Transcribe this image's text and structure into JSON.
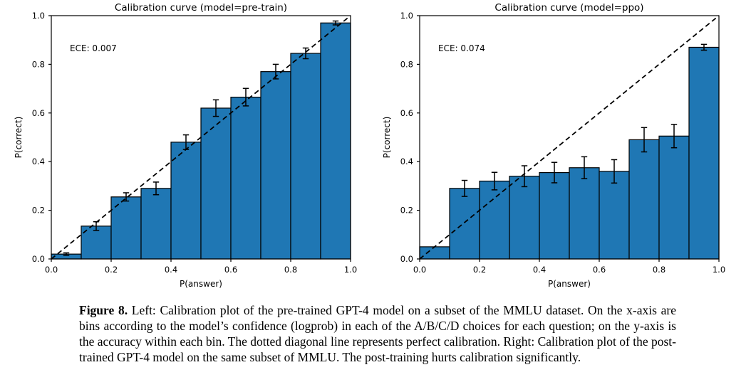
{
  "chart_data": [
    {
      "type": "bar",
      "title": "Calibration curve (model=pre-train)",
      "xlabel": "P(answer)",
      "ylabel": "P(correct)",
      "annotation": "ECE: 0.007",
      "xlim": [
        0.0,
        1.0
      ],
      "ylim": [
        0.0,
        1.0
      ],
      "xticks": [
        0.0,
        0.2,
        0.4,
        0.6,
        0.8,
        1.0
      ],
      "yticks": [
        0.0,
        0.2,
        0.4,
        0.6,
        0.8,
        1.0
      ],
      "bin_start": [
        0.0,
        0.1,
        0.2,
        0.3,
        0.4,
        0.5,
        0.6,
        0.7,
        0.8,
        0.9
      ],
      "bin_width": 0.1,
      "values": [
        0.02,
        0.135,
        0.255,
        0.29,
        0.48,
        0.62,
        0.665,
        0.77,
        0.845,
        0.97
      ],
      "errors": [
        0.005,
        0.018,
        0.017,
        0.026,
        0.03,
        0.034,
        0.036,
        0.03,
        0.022,
        0.008
      ],
      "diagonal": true,
      "grid": false,
      "legend": null,
      "colors": {
        "bar": "#1f77b4",
        "bar_edge": "#000000",
        "error": "#000000",
        "diagonal": "#000000",
        "axis": "#000000",
        "text": "#000000"
      }
    },
    {
      "type": "bar",
      "title": "Calibration curve (model=ppo)",
      "xlabel": "P(answer)",
      "ylabel": "P(correct)",
      "annotation": "ECE: 0.074",
      "xlim": [
        0.0,
        1.0
      ],
      "ylim": [
        0.0,
        1.0
      ],
      "xticks": [
        0.0,
        0.2,
        0.4,
        0.6,
        0.8,
        1.0
      ],
      "yticks": [
        0.0,
        0.2,
        0.4,
        0.6,
        0.8,
        1.0
      ],
      "bin_start": [
        0.0,
        0.1,
        0.2,
        0.3,
        0.4,
        0.5,
        0.6,
        0.7,
        0.8,
        0.9
      ],
      "bin_width": 0.1,
      "values": [
        0.05,
        0.29,
        0.32,
        0.34,
        0.355,
        0.375,
        0.36,
        0.49,
        0.505,
        0.87
      ],
      "errors": [
        0,
        0.033,
        0.036,
        0.043,
        0.042,
        0.045,
        0.048,
        0.05,
        0.048,
        0.012
      ],
      "diagonal": true,
      "grid": false,
      "legend": null,
      "colors": {
        "bar": "#1f77b4",
        "bar_edge": "#000000",
        "error": "#000000",
        "diagonal": "#000000",
        "axis": "#000000",
        "text": "#000000"
      }
    }
  ],
  "caption": {
    "label": "Figure 8.",
    "text": "Left: Calibration plot of the pre-trained GPT-4 model on a subset of the MMLU dataset. On the x-axis are bins according to the model’s confidence (logprob) in each of the A/B/C/D choices for each question; on the y-axis is the accuracy within each bin. The dotted diagonal line represents perfect calibration. Right: Calibration plot of the post-trained GPT-4 model on the same subset of MMLU. The post-training hurts calibration significantly."
  }
}
